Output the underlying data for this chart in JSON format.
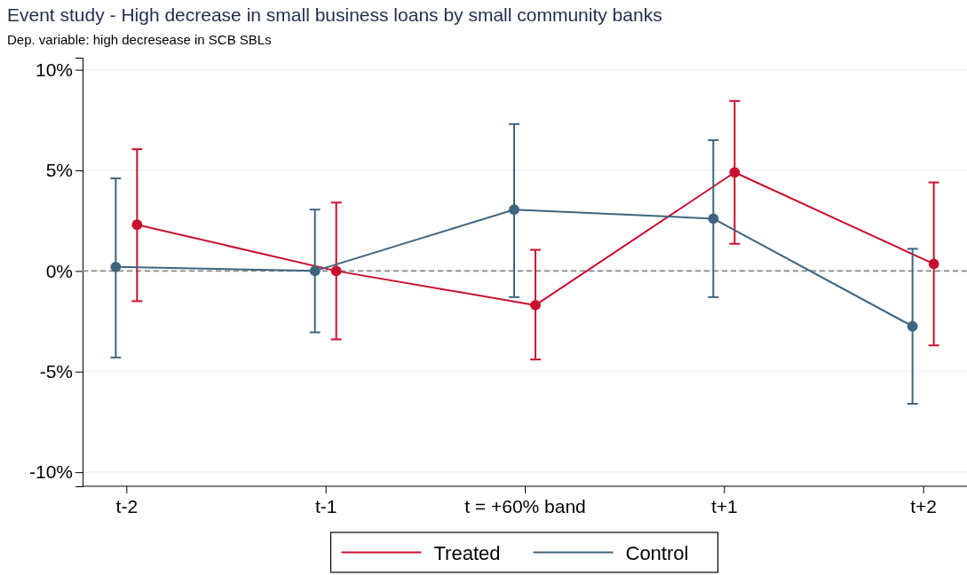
{
  "chart_data": {
    "type": "line",
    "title": "Event study - High decrease in small business loans by small community banks",
    "subtitle": "Dep. variable: high decresease in SCB SBLs",
    "categories": [
      "t-2",
      "t-1",
      "t = +60% band",
      "t+1",
      "t+2"
    ],
    "series": [
      {
        "name": "Treated",
        "color": "#c8102e",
        "values": [
          2.3,
          0,
          -1.7,
          4.9,
          0.35
        ],
        "errors": [
          [
            -1.5,
            6.05
          ],
          [
            -3.4,
            3.4
          ],
          [
            -4.4,
            1.05
          ],
          [
            1.35,
            8.45
          ],
          [
            -3.7,
            4.4
          ]
        ]
      },
      {
        "name": "Control",
        "color": "#3e6580",
        "values": [
          0.2,
          0,
          3.05,
          2.6,
          -2.75
        ],
        "errors": [
          [
            -4.3,
            4.6
          ],
          [
            -3.05,
            3.05
          ],
          [
            -1.3,
            7.3
          ],
          [
            -1.3,
            6.5
          ],
          [
            -6.6,
            1.1
          ]
        ]
      }
    ],
    "ylim": [
      -10.7,
      10.6
    ],
    "yticks": [
      {
        "value": -10,
        "label": "-10%"
      },
      {
        "value": -5,
        "label": "-5%"
      },
      {
        "value": 0,
        "label": "0%"
      },
      {
        "value": 5,
        "label": "5%"
      },
      {
        "value": 10,
        "label": "10%"
      }
    ],
    "ref_lines": [
      {
        "axis": "y",
        "value": 0,
        "color": "#888888",
        "line_style": "dashed"
      }
    ],
    "grid": "y",
    "legend": "bottom",
    "marker": "circle",
    "line_style": "solid"
  }
}
